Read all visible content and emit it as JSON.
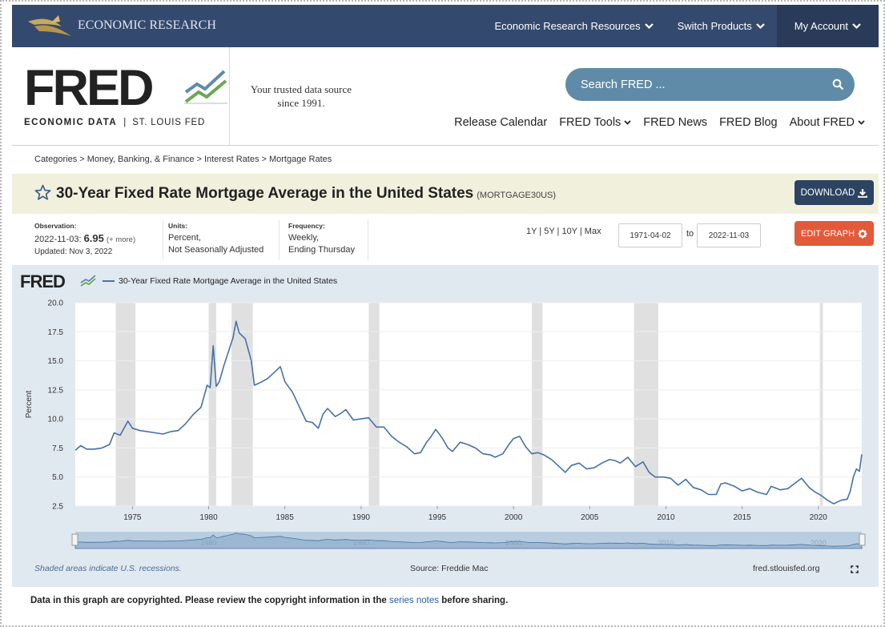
{
  "topbar": {
    "brand": "ECONOMIC RESEARCH",
    "nav": [
      {
        "label": "Economic Research Resources"
      },
      {
        "label": "Switch Products"
      },
      {
        "label": "My Account"
      }
    ]
  },
  "header": {
    "logo_word": "FRED",
    "logo_sub_left": "ECONOMIC DATA",
    "logo_sub_sep": "|",
    "logo_sub_right": "ST. LOUIS FED",
    "tagline": "Your trusted data source since 1991.",
    "search_placeholder": "Search FRED ...",
    "nav": [
      {
        "label": "Release Calendar",
        "dropdown": false
      },
      {
        "label": "FRED Tools",
        "dropdown": true
      },
      {
        "label": "FRED News",
        "dropdown": false
      },
      {
        "label": "FRED Blog",
        "dropdown": false
      },
      {
        "label": "About FRED",
        "dropdown": true
      }
    ]
  },
  "breadcrumb": "Categories > Money, Banking, & Finance > Interest Rates > Mortgage Rates",
  "series": {
    "title": "30-Year Fixed Rate Mortgage Average in the United States",
    "code": "(MORTGAGE30US)",
    "download_label": "DOWNLOAD",
    "edit_label": "EDIT GRAPH"
  },
  "observation": {
    "heading": "Observation:",
    "date": "2022-11-03:",
    "value": "6.95",
    "more": "(+ more)",
    "updated": "Updated: Nov 3, 2022"
  },
  "units": {
    "heading": "Units:",
    "line1": "Percent,",
    "line2": "Not Seasonally Adjusted"
  },
  "frequency": {
    "heading": "Frequency:",
    "line1": "Weekly,",
    "line2": "Ending Thursday"
  },
  "range": {
    "options": "1Y | 5Y | 10Y | Max",
    "start": "1971-04-02",
    "to": "to",
    "end": "2022-11-03"
  },
  "chart_data": {
    "type": "line",
    "title": "",
    "legend": "30-Year Fixed Rate Mortgage Average in the United States",
    "legend_placement": "top-left",
    "logo": "FRED",
    "ylabel": "Percent",
    "xlabel": "",
    "ylim": [
      2.5,
      20.0
    ],
    "xlim": [
      1971.25,
      2022.85
    ],
    "yticks": [
      2.5,
      5.0,
      7.5,
      10.0,
      12.5,
      15.0,
      17.5,
      20.0
    ],
    "ytick_labels": [
      "2.5",
      "5.0",
      "7.5",
      "10.0",
      "12.5",
      "15.0",
      "17.5",
      "20.0"
    ],
    "xticks": [
      1975,
      1980,
      1985,
      1990,
      1995,
      2000,
      2005,
      2010,
      2015,
      2020
    ],
    "xtick_labels": [
      "1975",
      "1980",
      "1985",
      "1990",
      "1995",
      "2000",
      "2005",
      "2010",
      "2015",
      "2020"
    ],
    "grid": true,
    "line_color": "#4572a7",
    "recessions": [
      [
        1973.9,
        1975.2
      ],
      [
        1980.0,
        1980.5
      ],
      [
        1981.5,
        1982.9
      ],
      [
        1990.5,
        1991.2
      ],
      [
        2001.2,
        2001.9
      ],
      [
        2007.9,
        2009.5
      ],
      [
        2020.1,
        2020.3
      ]
    ],
    "series": [
      {
        "name": "30-Year Fixed Rate Mortgage Average in the United States",
        "x": [
          1971.25,
          1971.6,
          1972.0,
          1972.5,
          1973.0,
          1973.5,
          1973.8,
          1974.2,
          1974.7,
          1975.0,
          1975.5,
          1976.0,
          1977.0,
          1977.5,
          1978.0,
          1978.5,
          1979.0,
          1979.5,
          1979.9,
          1980.1,
          1980.3,
          1980.5,
          1980.7,
          1981.0,
          1981.3,
          1981.6,
          1981.8,
          1982.0,
          1982.4,
          1982.8,
          1983.0,
          1983.5,
          1983.9,
          1984.3,
          1984.7,
          1985.0,
          1985.5,
          1986.0,
          1986.4,
          1986.8,
          1987.2,
          1987.5,
          1987.8,
          1988.3,
          1988.7,
          1989.0,
          1989.5,
          1990.0,
          1990.5,
          1991.0,
          1991.5,
          1992.0,
          1992.5,
          1993.0,
          1993.5,
          1993.9,
          1994.3,
          1994.6,
          1994.9,
          1995.3,
          1995.7,
          1996.0,
          1996.5,
          1997.0,
          1997.5,
          1998.0,
          1998.5,
          1998.8,
          1999.3,
          1999.7,
          2000.0,
          2000.4,
          2000.8,
          2001.2,
          2001.6,
          2002.0,
          2002.5,
          2003.0,
          2003.4,
          2003.8,
          2004.3,
          2004.8,
          2005.3,
          2005.8,
          2006.3,
          2006.7,
          2007.0,
          2007.5,
          2008.0,
          2008.5,
          2008.9,
          2009.3,
          2009.8,
          2010.3,
          2010.8,
          2011.3,
          2011.8,
          2012.3,
          2012.8,
          2013.3,
          2013.6,
          2013.9,
          2014.5,
          2015.0,
          2015.5,
          2016.0,
          2016.6,
          2016.9,
          2017.5,
          2018.0,
          2018.5,
          2018.9,
          2019.4,
          2019.8,
          2020.2,
          2020.6,
          2021.0,
          2021.5,
          2021.9,
          2022.1,
          2022.3,
          2022.5,
          2022.7,
          2022.85
        ],
        "y": [
          7.3,
          7.7,
          7.4,
          7.4,
          7.5,
          7.8,
          8.8,
          8.6,
          9.8,
          9.2,
          9.0,
          8.9,
          8.7,
          8.9,
          9.0,
          9.6,
          10.4,
          11.0,
          12.9,
          12.7,
          16.3,
          12.8,
          13.2,
          14.6,
          15.8,
          17.0,
          18.4,
          17.4,
          16.9,
          15.0,
          12.9,
          13.2,
          13.5,
          14.0,
          14.5,
          13.2,
          12.3,
          10.9,
          9.8,
          9.7,
          9.2,
          10.4,
          10.9,
          10.2,
          10.5,
          10.8,
          9.9,
          10.0,
          10.1,
          9.3,
          9.3,
          8.5,
          8.0,
          7.6,
          7.0,
          7.1,
          8.0,
          8.5,
          9.1,
          8.4,
          7.5,
          7.2,
          8.0,
          7.8,
          7.5,
          7.0,
          6.9,
          6.7,
          7.0,
          7.8,
          8.3,
          8.5,
          7.6,
          7.0,
          7.1,
          6.9,
          6.5,
          5.9,
          5.4,
          6.0,
          6.2,
          5.7,
          5.8,
          6.2,
          6.5,
          6.4,
          6.2,
          6.7,
          5.9,
          6.3,
          5.4,
          5.0,
          5.0,
          4.9,
          4.3,
          4.8,
          4.1,
          3.9,
          3.5,
          3.5,
          4.4,
          4.5,
          4.2,
          3.8,
          4.0,
          3.7,
          3.5,
          4.2,
          3.9,
          4.0,
          4.5,
          4.9,
          4.1,
          3.7,
          3.4,
          3.0,
          2.7,
          3.0,
          3.1,
          3.8,
          5.0,
          5.7,
          5.5,
          6.95
        ]
      }
    ],
    "navigator_ticks": [
      "1980",
      "1990",
      "2000",
      "2010",
      "2020"
    ],
    "source": "Source: Freddie Mac",
    "recession_note": "Shaded areas indicate U.S. recessions.",
    "site": "fred.stlouisfed.org"
  },
  "footer": {
    "text_before": "Data in this graph are copyrighted. Please review the copyright information in the",
    "link": "series notes",
    "text_after": "before sharing."
  },
  "colors": {
    "topbar": "#34496e",
    "account": "#2a3b59",
    "search": "#5f8ba8",
    "titlebar": "#f0f0dc",
    "download": "#2d4362",
    "edit": "#e25a3a",
    "chart_bg": "#e1e9f0",
    "line": "#4572a7"
  }
}
